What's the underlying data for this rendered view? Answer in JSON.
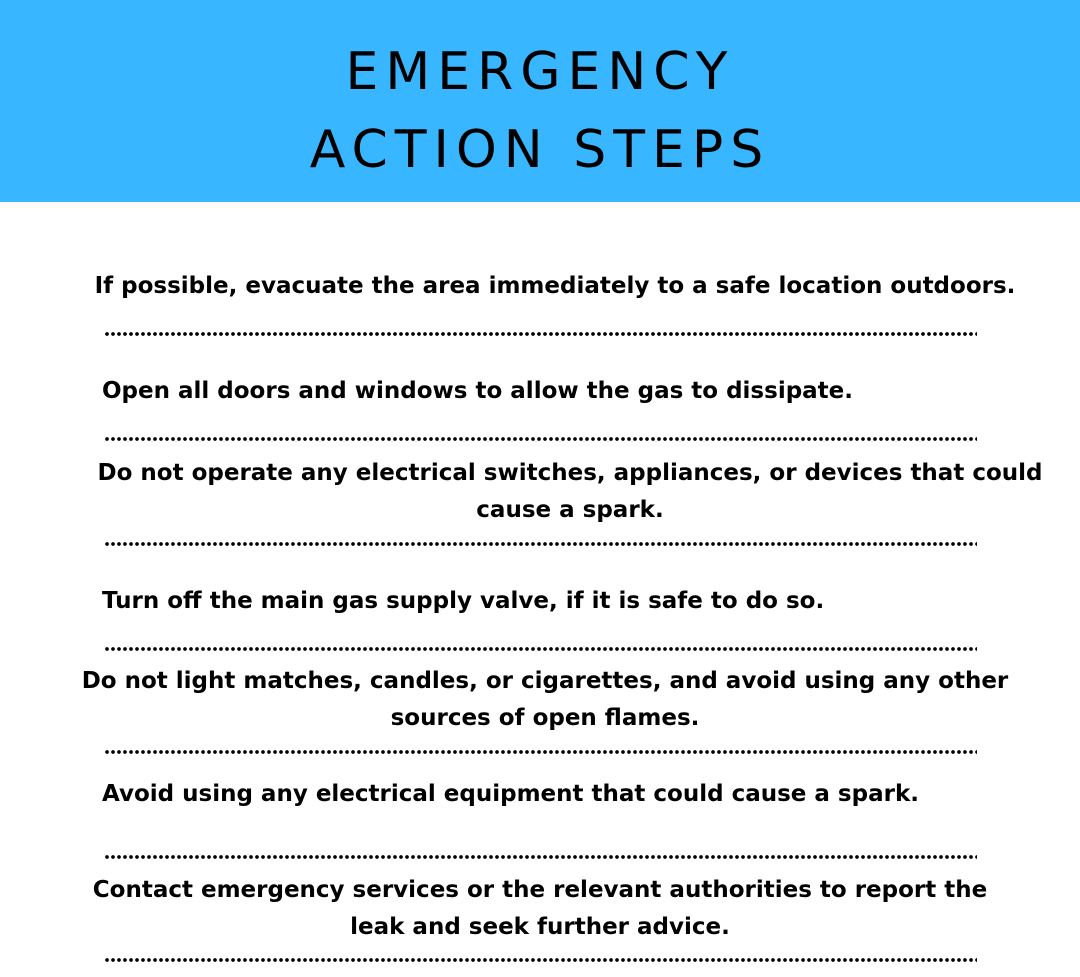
{
  "header": {
    "title_line1": "EMERGENCY",
    "title_line2": "ACTION STEPS",
    "background_color": "#38b6ff"
  },
  "steps": [
    {
      "lines": [
        "If possible, evacuate the area immediately to a safe location outdoors."
      ]
    },
    {
      "lines": [
        "Open all doors and windows to allow the gas to dissipate."
      ]
    },
    {
      "lines": [
        "Do not operate any electrical switches, appliances, or devices that could",
        "cause a spark."
      ]
    },
    {
      "lines": [
        "Turn off the main gas supply valve, if it is safe to do so."
      ]
    },
    {
      "lines": [
        "Do not light matches, candles, or cigarettes, and avoid using any other",
        "sources of open flames."
      ]
    },
    {
      "lines": [
        "Avoid using any electrical equipment that could cause a spark."
      ]
    },
    {
      "lines": [
        "Contact emergency services or the relevant authorities to report the",
        "leak and seek further advice."
      ]
    }
  ]
}
